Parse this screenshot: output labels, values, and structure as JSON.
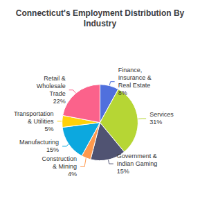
{
  "chart_data": {
    "type": "pie",
    "title": "Connecticut's Employment Distribution By\nIndustry",
    "categories": [
      "Finance,\nInsurance &\nReal Estate\n8%",
      "Services\n31%",
      "Government &\nIndian Gaming\n15%",
      "Construction\n& Mining\n4%",
      "Manufacturing\n15%",
      "Transportation\n& Utilities\n5%",
      "Retail &\nWholesale\nTrade\n22%"
    ],
    "values": [
      8,
      31,
      15,
      4,
      15,
      5,
      22
    ]
  }
}
